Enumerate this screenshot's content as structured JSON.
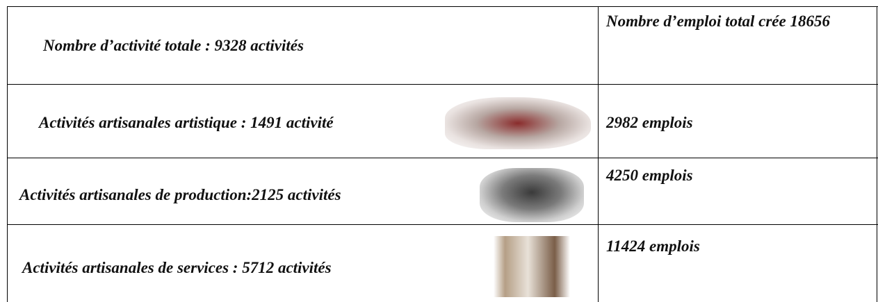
{
  "table": {
    "rows": [
      [
        "Nombre d’activité totale : 9328 activités",
        "Nombre d’emploi total crée 18656"
      ],
      [
        "Activités artisanales artistique : 1491 activité",
        "2982 emplois"
      ],
      [
        "Activités artisanales de production:2125 activités",
        "4250 emplois"
      ],
      [
        "Activités artisanales de services : 5712 activités",
        "11424 emplois"
      ]
    ]
  }
}
